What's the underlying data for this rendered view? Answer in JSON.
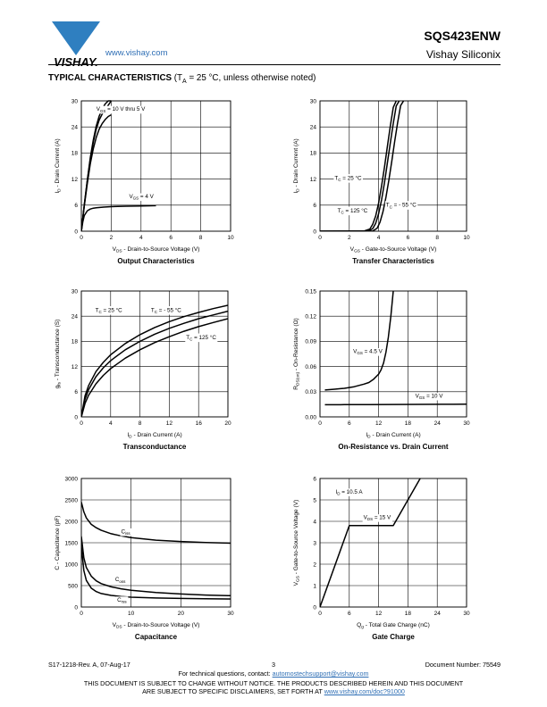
{
  "header": {
    "brand": "VISHAY.",
    "website": "www.vishay.com",
    "part_number": "SQS423ENW",
    "company": "Vishay Siliconix"
  },
  "section": {
    "title": "TYPICAL CHARACTERISTICS",
    "condition_prefix": " (T",
    "condition_sub": "A",
    "condition_suffix": " = 25 °C, unless otherwise noted)"
  },
  "footer": {
    "doc_rev": "S17-1218-Rev. A, 07-Aug-17",
    "page": "3",
    "doc_number": "Document Number: 75549",
    "contact_text": "For technical questions, contact: ",
    "contact_email": "automostechsupport@vishay.com",
    "notice_line1": "THIS DOCUMENT IS SUBJECT TO CHANGE WITHOUT NOTICE. THE PRODUCTS DESCRIBED HEREIN AND THIS DOCUMENT",
    "notice_line2": "ARE SUBJECT TO SPECIFIC DISCLAIMERS, SET FORTH AT ",
    "notice_link": "www.vishay.com/doc?91000"
  },
  "chart_data": [
    {
      "type": "line",
      "title": "Output Characteristics",
      "xlabel": [
        "V",
        "DS",
        " - Drain-to-Source Voltage (V)"
      ],
      "ylabel": [
        "I",
        "D",
        " - Drain Current (A)"
      ],
      "xlim": [
        0,
        10
      ],
      "ylim": [
        0,
        30
      ],
      "xticks": [
        "0",
        "2",
        "4",
        "6",
        "8",
        "10"
      ],
      "yticks": [
        "0",
        "6",
        "12",
        "18",
        "24",
        "30"
      ],
      "grid": true,
      "annotations": [
        {
          "parts": [
            "V",
            "GS",
            " = 10 V thru 5 V"
          ],
          "x": 1.0,
          "y": 27.7
        },
        {
          "parts": [
            "V",
            "GS",
            " = 4 V"
          ],
          "x": 3.2,
          "y": 7.6
        }
      ],
      "series": [
        {
          "x": [
            0,
            0.2,
            0.4,
            0.6,
            0.8,
            1.0,
            1.2,
            1.4,
            1.6,
            1.8,
            2.0
          ],
          "y": [
            0,
            6.1,
            11.8,
            16.9,
            21.0,
            24.2,
            26.5,
            28.1,
            29.3,
            30,
            30
          ]
        },
        {
          "x": [
            0,
            0.2,
            0.4,
            0.6,
            0.8,
            1.0,
            1.2,
            1.4,
            1.6,
            1.8,
            2.0
          ],
          "y": [
            0,
            6.0,
            11.6,
            16.5,
            20.5,
            23.5,
            25.6,
            27.0,
            28.0,
            29.0,
            30
          ]
        },
        {
          "x": [
            0,
            0.2,
            0.4,
            0.6,
            0.8,
            1.0,
            1.2,
            1.4,
            1.6,
            1.8,
            2.0
          ],
          "y": [
            0,
            5.8,
            11.0,
            15.5,
            19.0,
            21.6,
            23.5,
            24.8,
            25.7,
            26.4,
            26.8
          ]
        },
        {
          "x": [
            0,
            0.1,
            0.2,
            0.4,
            0.6,
            0.8,
            1.0,
            1.5,
            2.0,
            3.0,
            4.0,
            5.0
          ],
          "y": [
            0,
            2.2,
            3.6,
            4.7,
            5.1,
            5.3,
            5.4,
            5.55,
            5.65,
            5.75,
            5.82,
            5.88
          ]
        }
      ]
    },
    {
      "type": "line",
      "title": "Transfer Characteristics",
      "xlabel": [
        "V",
        "GS",
        " - Gate-to-Source Voltage (V)"
      ],
      "ylabel": [
        "I",
        "D",
        " - Drain Current (A)"
      ],
      "xlim": [
        0,
        10
      ],
      "ylim": [
        0,
        30
      ],
      "xticks": [
        "0",
        "2",
        "4",
        "6",
        "8",
        "10"
      ],
      "yticks": [
        "0",
        "6",
        "12",
        "18",
        "24",
        "30"
      ],
      "grid": true,
      "annotations": [
        {
          "parts": [
            "T",
            "C",
            " = 25 °C"
          ],
          "x": 1.0,
          "y": 11.8
        },
        {
          "parts": [
            "T",
            "C",
            " = 125 °C"
          ],
          "x": 1.2,
          "y": 4.3
        },
        {
          "parts": [
            "T",
            "C",
            " = - 55 °C"
          ],
          "x": 4.5,
          "y": 5.6
        }
      ],
      "series": [
        {
          "name": "TC = 125 °C",
          "x": [
            0,
            3.0,
            3.4,
            3.6,
            3.8,
            4.0,
            4.2,
            4.4,
            4.6,
            4.8,
            5.0,
            5.2
          ],
          "y": [
            0,
            0.05,
            0.5,
            1.6,
            3.5,
            6.5,
            10.4,
            14.8,
            19.5,
            24.2,
            28.5,
            30
          ]
        },
        {
          "name": "TC = 25 °C",
          "x": [
            0,
            3.3,
            3.6,
            3.8,
            4.0,
            4.2,
            4.4,
            4.6,
            4.8,
            5.0,
            5.2,
            5.4
          ],
          "y": [
            0,
            0.05,
            0.6,
            1.8,
            4.0,
            7.2,
            11.2,
            15.7,
            20.3,
            24.8,
            28.8,
            30
          ]
        },
        {
          "name": "TC = - 55 °C",
          "x": [
            0,
            3.6,
            3.9,
            4.1,
            4.3,
            4.5,
            4.7,
            4.9,
            5.1,
            5.3,
            5.5,
            5.7
          ],
          "y": [
            0,
            0.05,
            0.7,
            2.1,
            4.5,
            7.8,
            11.8,
            16.2,
            20.7,
            25.0,
            28.9,
            30
          ]
        }
      ]
    },
    {
      "type": "line",
      "title": "Transconductance",
      "xlabel": [
        "I",
        "D",
        " - Drain Current (A)"
      ],
      "ylabel": [
        "g",
        "fs",
        " - Transconductance (S)"
      ],
      "xlim": [
        0,
        20
      ],
      "ylim": [
        0,
        30
      ],
      "xticks": [
        "0",
        "4",
        "8",
        "12",
        "16",
        "20"
      ],
      "yticks": [
        "0",
        "6",
        "12",
        "18",
        "24",
        "30"
      ],
      "grid": true,
      "annotations": [
        {
          "parts": [
            "T",
            "C",
            " = 25 °C"
          ],
          "x": 1.9,
          "y": 25.0
        },
        {
          "parts": [
            "T",
            "C",
            " = - 55 °C"
          ],
          "x": 9.5,
          "y": 25.0
        },
        {
          "parts": [
            "T",
            "C",
            " = 125 °C"
          ],
          "x": 14.3,
          "y": 18.5
        }
      ],
      "series": [
        {
          "name": "TC = - 55 °C",
          "x": [
            0,
            0.5,
            1,
            2,
            3,
            4,
            6,
            8,
            10,
            12,
            14,
            16,
            18,
            20
          ],
          "y": [
            0,
            5.0,
            7.5,
            10.8,
            13.0,
            14.8,
            17.5,
            19.6,
            21.3,
            22.7,
            23.9,
            24.9,
            25.8,
            26.6
          ]
        },
        {
          "name": "TC = 25 °C",
          "x": [
            0,
            0.5,
            1,
            2,
            3,
            4,
            6,
            8,
            10,
            12,
            14,
            16,
            18,
            20
          ],
          "y": [
            0,
            4.2,
            6.5,
            9.6,
            11.7,
            13.4,
            16.0,
            18.0,
            19.7,
            21.1,
            22.3,
            23.4,
            24.3,
            25.2
          ]
        },
        {
          "name": "TC = 125 °C",
          "x": [
            0,
            0.5,
            1,
            2,
            3,
            4,
            6,
            8,
            10,
            12,
            14,
            16,
            18,
            20
          ],
          "y": [
            0,
            3.2,
            5.2,
            7.9,
            9.9,
            11.5,
            14.0,
            16.0,
            17.7,
            19.1,
            20.4,
            21.5,
            22.5,
            23.4
          ]
        }
      ]
    },
    {
      "type": "line",
      "title": "On-Resistance vs. Drain Current",
      "xlabel": [
        "I",
        "D",
        " - Drain Current (A)"
      ],
      "ylabel": [
        "R",
        "DS(on)",
        " - On-Resistance (Ω)"
      ],
      "xlim": [
        0,
        30
      ],
      "ylim": [
        0,
        0.15
      ],
      "xticks": [
        "0",
        "6",
        "12",
        "18",
        "24",
        "30"
      ],
      "yticks": [
        "0.00",
        "0.03",
        "0.06",
        "0.09",
        "0.12",
        "0.15"
      ],
      "grid": true,
      "annotations": [
        {
          "parts": [
            "V",
            "GS",
            " = 4.5 V"
          ],
          "x": 6.8,
          "y": 0.076
        },
        {
          "parts": [
            "V",
            "GS",
            " = 10 V"
          ],
          "x": 19.5,
          "y": 0.023
        }
      ],
      "series": [
        {
          "name": "VGS = 4.5 V",
          "x": [
            1,
            3,
            5,
            7,
            9,
            10,
            11,
            12,
            12.5,
            13,
            13.5,
            14,
            14.5,
            15
          ],
          "y": [
            0.032,
            0.033,
            0.034,
            0.036,
            0.039,
            0.041,
            0.045,
            0.051,
            0.056,
            0.064,
            0.077,
            0.095,
            0.12,
            0.15
          ]
        },
        {
          "name": "VGS = 10 V",
          "x": [
            1,
            5,
            10,
            15,
            20,
            25,
            30
          ],
          "y": [
            0.0145,
            0.0146,
            0.0147,
            0.0148,
            0.0149,
            0.015,
            0.0151
          ]
        }
      ]
    },
    {
      "type": "line",
      "title": "Capacitance",
      "xlabel": [
        "V",
        "DS",
        " - Drain-to-Source Voltage (V)"
      ],
      "ylabel": [
        "C - Capacitance (pF)"
      ],
      "xlim": [
        0,
        30
      ],
      "ylim": [
        0,
        3000
      ],
      "xticks": [
        "0",
        "10",
        "20",
        "30"
      ],
      "yticks": [
        "0",
        "500",
        "1000",
        "1500",
        "2000",
        "2500",
        "3000"
      ],
      "grid": true,
      "annotations": [
        {
          "parts": [
            "C",
            "iss",
            ""
          ],
          "x": 8.0,
          "y": 1720
        },
        {
          "parts": [
            "C",
            "oss",
            ""
          ],
          "x": 6.8,
          "y": 600
        },
        {
          "parts": [
            "C",
            "rss",
            ""
          ],
          "x": 7.2,
          "y": 130
        }
      ],
      "series": [
        {
          "name": "Ciss",
          "x": [
            0,
            0.5,
            1,
            2,
            3,
            4,
            6,
            8,
            10,
            15,
            20,
            25,
            30
          ],
          "y": [
            2450,
            2220,
            2080,
            1930,
            1850,
            1790,
            1710,
            1660,
            1620,
            1560,
            1530,
            1505,
            1490
          ]
        },
        {
          "name": "Coss",
          "x": [
            0,
            0.5,
            1,
            2,
            3,
            4,
            6,
            8,
            10,
            15,
            20,
            25,
            30
          ],
          "y": [
            1650,
            1150,
            920,
            720,
            610,
            545,
            470,
            425,
            390,
            340,
            305,
            280,
            265
          ]
        },
        {
          "name": "Crss",
          "x": [
            0,
            0.5,
            1,
            2,
            3,
            4,
            6,
            8,
            10,
            15,
            20,
            25,
            30
          ],
          "y": [
            1420,
            850,
            620,
            440,
            360,
            315,
            270,
            245,
            230,
            210,
            200,
            193,
            188
          ]
        }
      ]
    },
    {
      "type": "line",
      "title": "Gate Charge",
      "xlabel": [
        "Q",
        "g",
        " - Total Gate Charge (nC)"
      ],
      "ylabel": [
        "V",
        "GS",
        " - Gate-to-Source Voltage (V)"
      ],
      "xlim": [
        0,
        30
      ],
      "ylim": [
        0,
        6
      ],
      "xticks": [
        "0",
        "6",
        "12",
        "18",
        "24",
        "30"
      ],
      "yticks": [
        "0",
        "1",
        "2",
        "3",
        "4",
        "5",
        "6"
      ],
      "grid": true,
      "annotations": [
        {
          "parts": [
            "I",
            "D",
            " = 10.5 A"
          ],
          "x": 3.2,
          "y": 5.3
        },
        {
          "parts": [
            "V",
            "DS",
            " = 15 V"
          ],
          "x": 8.9,
          "y": 4.1
        }
      ],
      "series": [
        {
          "x": [
            0,
            6.0,
            15.0,
            20.5
          ],
          "y": [
            0,
            3.8,
            3.8,
            6.0
          ]
        }
      ]
    }
  ]
}
